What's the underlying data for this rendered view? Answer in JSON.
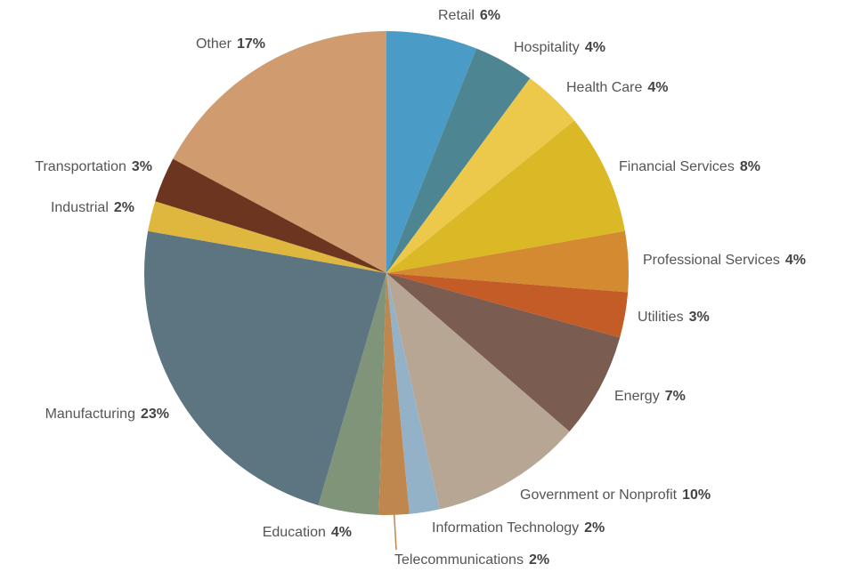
{
  "chart_data": {
    "type": "pie",
    "categories": [
      "Retail",
      "Hospitality",
      "Health Care",
      "Financial Services",
      "Professional Services",
      "Utilities",
      "Energy",
      "Government or Nonprofit",
      "Information Technology",
      "Telecommunications",
      "Education",
      "Manufacturing",
      "Industrial",
      "Transportation",
      "Other"
    ],
    "values": [
      6,
      4,
      4,
      8,
      4,
      3,
      7,
      10,
      2,
      2,
      4,
      23,
      2,
      3,
      17
    ],
    "value_labels": [
      "6%",
      "4%",
      "4%",
      "8%",
      "4%",
      "3%",
      "7%",
      "10%",
      "2%",
      "2%",
      "4%",
      "23%",
      "2%",
      "3%",
      "17%"
    ],
    "colors": [
      "#4a9bc6",
      "#4e8593",
      "#ecc94b",
      "#dbb825",
      "#d38a31",
      "#c45c27",
      "#7a5c50",
      "#b8a695",
      "#93b2c8",
      "#bf864e",
      "#7f9479",
      "#5c7580",
      "#e0b73e",
      "#6b3520",
      "#d09b6e"
    ]
  }
}
